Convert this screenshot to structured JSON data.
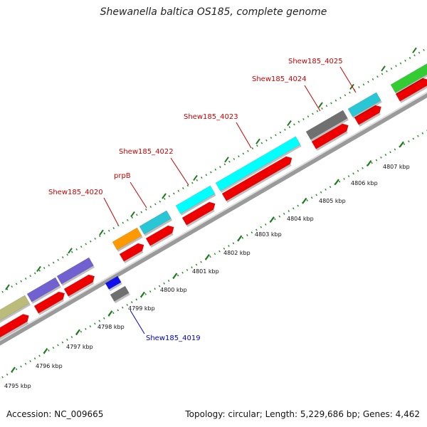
{
  "title": "Shewanella baltica OS185, complete genome",
  "footer": {
    "accession": "Accession: NC_009665",
    "topology": "Topology: circular; Length: 5,229,686 bp; Genes: 4,462"
  },
  "colors": {
    "label_red": "#cc0000",
    "label_blue": "#0000cc",
    "tick_green": "#2e8b2e",
    "backbone": "#999999",
    "reverse_strand": "#ee0000"
  },
  "scale_labels": [
    "4795 kbp",
    "4796 kbp",
    "4797 kbp",
    "4798 kbp",
    "4799 kbp",
    "4800 kbp",
    "4801 kbp",
    "4802 kbp",
    "4803 kbp",
    "4804 kbp",
    "4805 kbp",
    "4806 kbp",
    "4807 kbp"
  ],
  "gene_labels": [
    {
      "text": "Shew185_4020",
      "color": "#cc0000"
    },
    {
      "text": "prpB",
      "color": "#cc0000"
    },
    {
      "text": "Shew185_4022",
      "color": "#cc0000"
    },
    {
      "text": "Shew185_4023",
      "color": "#cc0000"
    },
    {
      "text": "Shew185_4024",
      "color": "#cc0000"
    },
    {
      "text": "Shew185_4025",
      "color": "#cc0000"
    },
    {
      "text": "Shew185_4019",
      "color": "#0000cc"
    }
  ]
}
